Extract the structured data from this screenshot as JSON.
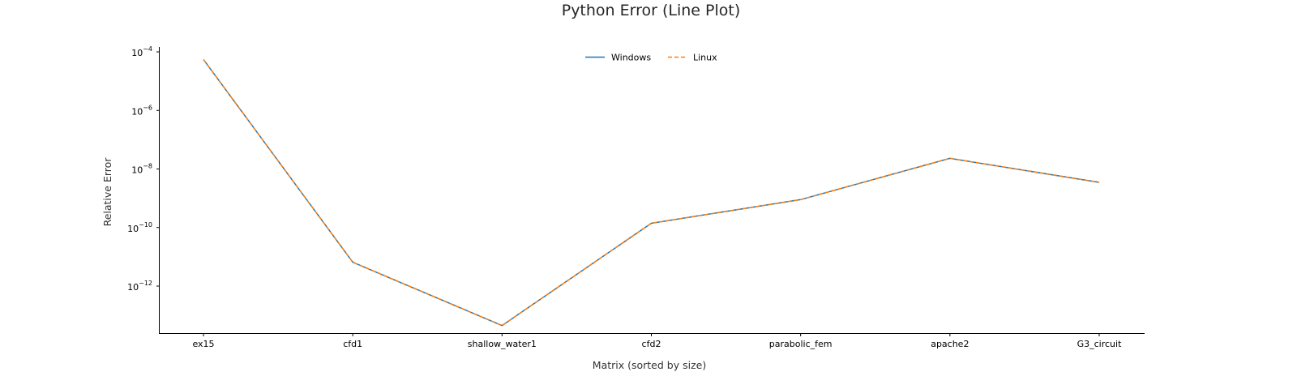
{
  "chart_data": {
    "type": "line",
    "title": "Python Error (Line Plot)",
    "xlabel": "Matrix (sorted by size)",
    "ylabel": "Relative Error",
    "yscale": "log",
    "ylim": [
      6e-14,
      0.00013
    ],
    "categories": [
      "ex15",
      "cfd1",
      "shallow_water1",
      "cfd2",
      "parabolic_fem",
      "apache2",
      "G3_circuit"
    ],
    "series": [
      {
        "name": "Windows",
        "color": "#1f77b4",
        "linestyle": "solid",
        "values": [
          5.5e-05,
          6.5e-12,
          4.5e-14,
          1.4e-10,
          9e-10,
          2.3e-08,
          3.5e-09
        ]
      },
      {
        "name": "Linux",
        "color": "#ff7f0e",
        "linestyle": "dashed",
        "values": [
          5.5e-05,
          6.5e-12,
          4.5e-14,
          1.4e-10,
          9e-10,
          2.3e-08,
          3.5e-09
        ]
      }
    ],
    "y_ticks": [
      {
        "base": "10",
        "exp": "−4"
      },
      {
        "base": "10",
        "exp": "−6"
      },
      {
        "base": "10",
        "exp": "−8"
      },
      {
        "base": "10",
        "exp": "−10"
      },
      {
        "base": "10",
        "exp": "−12"
      }
    ],
    "legend": {
      "location": "upper center",
      "columns": 2
    },
    "grid": false
  }
}
